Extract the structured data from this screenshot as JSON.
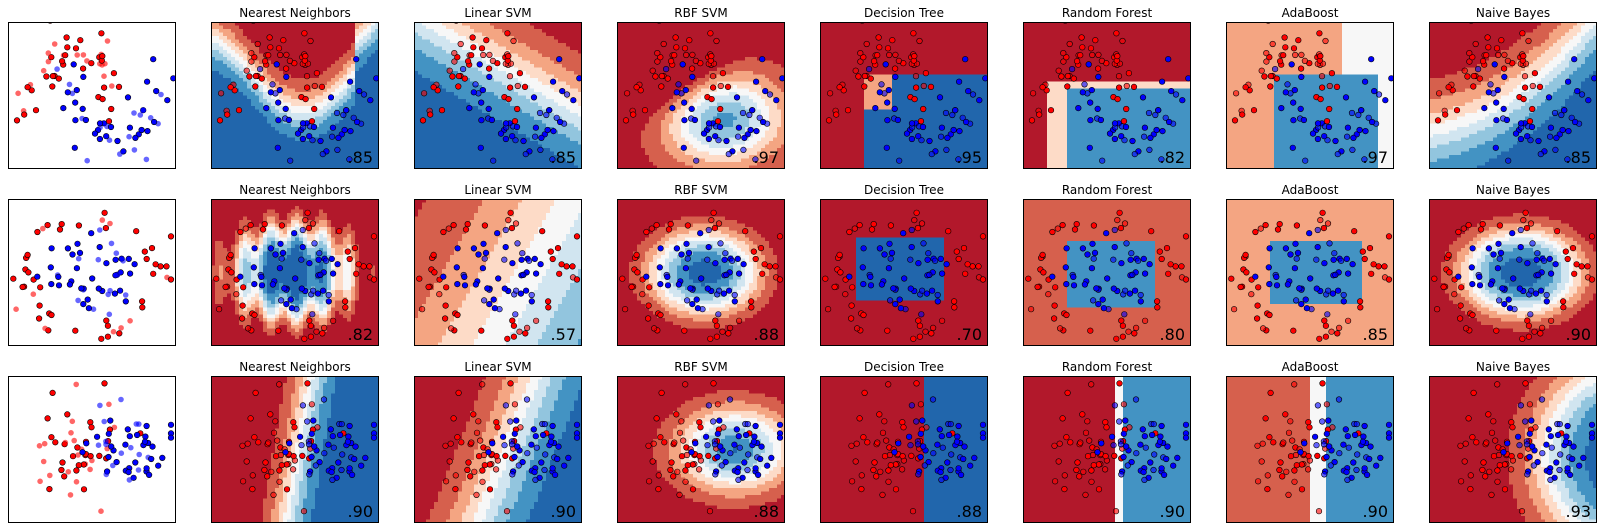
{
  "figure": {
    "row_count": 3,
    "column_count": 8
  },
  "colors": {
    "class0_point": "#ff0000",
    "class1_point": "#0000ff",
    "red_dark": "#b2182b",
    "red_mid": "#d6604d",
    "red_light": "#f4a582",
    "red_pale": "#fddbc7",
    "neutral": "#f7f7f7",
    "blue_pale": "#d1e5f0",
    "blue_light": "#92c5de",
    "blue_mid": "#4393c3",
    "blue_dark": "#2166ac"
  },
  "chart_data": {
    "type": "scatter",
    "column_titles": [
      "",
      "Nearest Neighbors",
      "Linear SVM",
      "RBF SVM",
      "Decision Tree",
      "Random Forest",
      "AdaBoost",
      "Naive Bayes"
    ],
    "rows": [
      {
        "dataset": "moons",
        "scores": [
          "",
          ".85",
          ".85",
          ".97",
          ".95",
          ".82",
          ".97",
          ".85"
        ]
      },
      {
        "dataset": "circles",
        "scores": [
          "",
          ".82",
          ".57",
          ".88",
          ".70",
          ".80",
          ".85",
          ".90"
        ]
      },
      {
        "dataset": "linearly_separable",
        "scores": [
          "",
          ".90",
          ".90",
          ".88",
          ".88",
          ".90",
          ".90",
          ".93"
        ]
      }
    ]
  }
}
